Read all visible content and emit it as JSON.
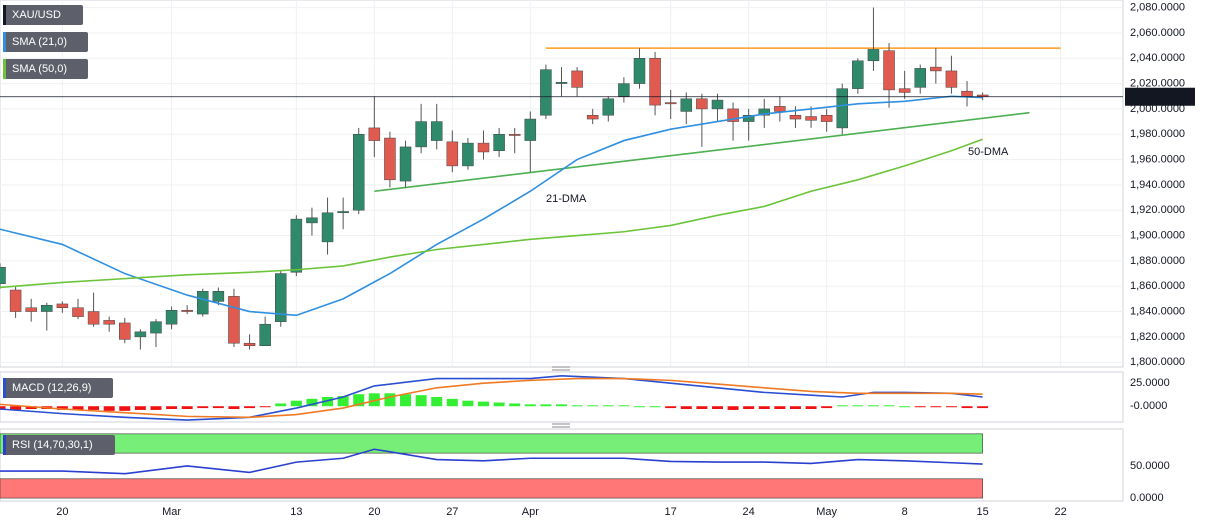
{
  "chart_data": [
    {
      "type": "candlestick",
      "title": "XAU/USD",
      "x": [
        0,
        1,
        2,
        3,
        4,
        5,
        6,
        7,
        8,
        9,
        10,
        11,
        12,
        13,
        14,
        15,
        16,
        17,
        18,
        19,
        20,
        21,
        22,
        23,
        24,
        25,
        26,
        27,
        28,
        29,
        30,
        31,
        32,
        33,
        34,
        35,
        36,
        37,
        38,
        39,
        40,
        41,
        42,
        43,
        44,
        45,
        46,
        47,
        48,
        49,
        50,
        51,
        52,
        53,
        54,
        55,
        56,
        57,
        58,
        59,
        60,
        61,
        62,
        63
      ],
      "open": [
        1862,
        1857,
        1843,
        1840,
        1846,
        1843,
        1840,
        1833,
        1831,
        1820,
        1823,
        1830,
        1841,
        1838,
        1848,
        1852,
        1815,
        1813,
        1832,
        1871,
        1910,
        1895,
        1918,
        1920,
        1985,
        1977,
        1943,
        1970,
        1975,
        1974,
        1955,
        1973,
        1967,
        1980,
        1975,
        1995,
        2020,
        2030,
        1995,
        1995,
        2010,
        2020,
        2040,
        2005,
        1998,
        2008,
        2000,
        2000,
        1990,
        1995,
        2002,
        1995,
        1994,
        1995,
        1985,
        2016,
        2038,
        2046,
        2016,
        2017,
        2033,
        2030,
        2014,
        2011
      ],
      "high": [
        1878,
        1860,
        1850,
        1847,
        1848,
        1850,
        1855,
        1836,
        1835,
        1826,
        1834,
        1844,
        1845,
        1858,
        1859,
        1858,
        1822,
        1836,
        1872,
        1916,
        1922,
        1930,
        1930,
        1985,
        2010,
        1982,
        1975,
        2004,
        2004,
        1983,
        1977,
        1983,
        1985,
        1985,
        1998,
        2035,
        2033,
        2033,
        2000,
        2010,
        2025,
        2048,
        2045,
        2015,
        2013,
        2012,
        2012,
        2005,
        2000,
        2008,
        2010,
        2002,
        2002,
        2000,
        2020,
        2040,
        2080,
        2052,
        2030,
        2035,
        2048,
        2042,
        2022,
        2013
      ],
      "low": [
        1858,
        1835,
        1832,
        1825,
        1839,
        1834,
        1828,
        1824,
        1815,
        1810,
        1812,
        1826,
        1838,
        1836,
        1845,
        1812,
        1810,
        1813,
        1828,
        1868,
        1900,
        1885,
        1905,
        1917,
        1962,
        1938,
        1938,
        1965,
        1968,
        1950,
        1952,
        1960,
        1962,
        1965,
        1950,
        1992,
        2010,
        2010,
        1988,
        1990,
        2005,
        2016,
        1995,
        1992,
        1988,
        1970,
        1990,
        1975,
        1975,
        1985,
        1990,
        1985,
        1985,
        1982,
        1980,
        2012,
        2030,
        2001,
        2008,
        2012,
        2020,
        2012,
        2002,
        2007
      ],
      "close": [
        1875,
        1840,
        1840,
        1845,
        1843,
        1836,
        1830,
        1830,
        1818,
        1824,
        1832,
        1841,
        1840,
        1856,
        1856,
        1815,
        1813,
        1830,
        1870,
        1913,
        1914,
        1918,
        1919,
        1980,
        1975,
        1944,
        1970,
        1990,
        1990,
        1955,
        1973,
        1966,
        1980,
        1979,
        1992,
        2031,
        2021,
        2017,
        1992,
        2008,
        2020,
        2040,
        2003,
        2004,
        2008,
        2000,
        2007,
        1990,
        1995,
        2000,
        1998,
        1992,
        1991,
        1990,
        2016,
        2038,
        2047,
        2015,
        2013,
        2032,
        2030,
        2017,
        2010,
        2009.61
      ],
      "up_color": "#2f8a6c",
      "down_color": "#e15a50",
      "series": [
        {
          "name": "SMA (21,0)",
          "color": "#2f8fe0",
          "x": [
            0,
            4,
            8,
            12,
            16,
            19,
            22,
            25,
            28,
            31,
            34,
            37,
            40,
            43,
            46,
            49,
            52,
            55,
            58,
            61,
            63
          ],
          "values": [
            1905,
            1893,
            1870,
            1853,
            1840,
            1837,
            1850,
            1870,
            1893,
            1913,
            1935,
            1960,
            1975,
            1984,
            1990,
            1996,
            2000,
            2004,
            2006,
            2010,
            2009
          ]
        },
        {
          "name": "SMA (50,0)",
          "color": "#6cc43a",
          "x": [
            0,
            4,
            8,
            12,
            16,
            19,
            22,
            25,
            28,
            31,
            34,
            37,
            40,
            43,
            46,
            49,
            52,
            55,
            58,
            61,
            63
          ],
          "values": [
            1859,
            1863,
            1866,
            1869,
            1871,
            1873,
            1876,
            1883,
            1889,
            1893,
            1897,
            1900,
            1903,
            1908,
            1916,
            1923,
            1935,
            1944,
            1955,
            1967,
            1976
          ]
        }
      ],
      "trendlines": [
        {
          "color": "#ff9a1a",
          "x": [
            35,
            68
          ],
          "values": [
            2048,
            2048
          ]
        },
        {
          "color": "#4caf50",
          "x": [
            24,
            66
          ],
          "values": [
            1935,
            1997
          ]
        }
      ],
      "annotations": [
        {
          "text": "21-DMA",
          "color": "#2f8fe0"
        },
        {
          "text": "50-DMA",
          "color": "#6cc43a"
        }
      ],
      "last_price": {
        "value": 2009.61,
        "label": "2,009.6100"
      },
      "xlim": [
        0,
        72
      ],
      "ylim": [
        1797,
        2086
      ],
      "yticks": [
        {
          "value": 1800,
          "label": "1,800.0000"
        },
        {
          "value": 1820,
          "label": "1,820.0000"
        },
        {
          "value": 1840,
          "label": "1,840.0000"
        },
        {
          "value": 1860,
          "label": "1,860.0000"
        },
        {
          "value": 1880,
          "label": "1,880.0000"
        },
        {
          "value": 1900,
          "label": "1,900.0000"
        },
        {
          "value": 1920,
          "label": "1,920.0000"
        },
        {
          "value": 1940,
          "label": "1,940.0000"
        },
        {
          "value": 1960,
          "label": "1,960.0000"
        },
        {
          "value": 1980,
          "label": "1,980.0000"
        },
        {
          "value": 2000,
          "label": "2,000.0000"
        },
        {
          "value": 2020,
          "label": "2,020.0000"
        },
        {
          "value": 2040,
          "label": "2,040.0000"
        },
        {
          "value": 2060,
          "label": "2,060.0000"
        },
        {
          "value": 2080,
          "label": "2,080.0000"
        }
      ],
      "xticks": [
        {
          "value": 4,
          "label": "20"
        },
        {
          "value": 11,
          "label": "Mar"
        },
        {
          "value": 19,
          "label": "13"
        },
        {
          "value": 24,
          "label": "20"
        },
        {
          "value": 29,
          "label": "27"
        },
        {
          "value": 34,
          "label": "Apr"
        },
        {
          "value": 43,
          "label": "17"
        },
        {
          "value": 48,
          "label": "24"
        },
        {
          "value": 53,
          "label": "May"
        },
        {
          "value": 58,
          "label": "8"
        },
        {
          "value": 63,
          "label": "15"
        },
        {
          "value": 68,
          "label": "22"
        }
      ],
      "grid": true
    },
    {
      "type": "macd",
      "title": "MACD (12,26,9)",
      "histogram": [
        -4,
        -4,
        -3,
        -3,
        -4,
        -4,
        -4,
        -5,
        -5,
        -4,
        -4,
        -3,
        -3,
        -2,
        -2,
        -3,
        -2,
        -1,
        3,
        6,
        8,
        10,
        11,
        13,
        14,
        14,
        13,
        12,
        10,
        8,
        6,
        5,
        4,
        3,
        2,
        2,
        2,
        1,
        1,
        1,
        1,
        0,
        0,
        -2,
        -3,
        -3,
        -3,
        -4,
        -3,
        -3,
        -3,
        -3,
        -3,
        -2,
        1,
        1,
        1,
        1,
        0,
        -1,
        -1,
        -1,
        -2,
        -2
      ],
      "up_color": "#33ee33",
      "down_color": "#ee1111",
      "series": [
        {
          "name": "MACD",
          "color": "#2a4fd0",
          "x": [
            0,
            4,
            8,
            12,
            16,
            19,
            22,
            24,
            28,
            34,
            36,
            40,
            43,
            46,
            49,
            52,
            54,
            56,
            58,
            61,
            63
          ],
          "values": [
            -3,
            -8,
            -12,
            -15,
            -12,
            -2,
            10,
            22,
            30,
            30,
            33,
            30,
            25,
            20,
            15,
            12,
            10,
            15,
            15,
            14,
            10
          ]
        },
        {
          "name": "Signal",
          "color": "#f07a22",
          "x": [
            0,
            4,
            8,
            12,
            16,
            19,
            22,
            25,
            28,
            31,
            34,
            37,
            40,
            43,
            46,
            49,
            52,
            55,
            58,
            61,
            63
          ],
          "values": [
            2,
            -3,
            -7,
            -11,
            -12,
            -9,
            -2,
            10,
            20,
            25,
            28,
            30,
            30,
            28,
            24,
            20,
            16,
            14,
            14,
            14,
            13
          ]
        }
      ],
      "xlim": [
        0,
        72
      ],
      "ylim": [
        -16,
        36
      ],
      "yticks": [
        {
          "value": 25,
          "label": "25.0000"
        },
        {
          "value": 0,
          "label": "-0.0000"
        }
      ]
    },
    {
      "type": "rsi",
      "title": "RSI (14,70,30,1)",
      "bands": [
        {
          "from": 70,
          "to": 100,
          "color": "#77ee77"
        },
        {
          "from": 0,
          "to": 30,
          "color": "#ff7777"
        }
      ],
      "series": [
        {
          "name": "RSI",
          "color": "#2a3fd0",
          "x": [
            0,
            4,
            8,
            12,
            16,
            19,
            22,
            24,
            28,
            31,
            34,
            37,
            40,
            43,
            46,
            49,
            52,
            55,
            58,
            61,
            63
          ],
          "values": [
            42,
            42,
            38,
            50,
            40,
            56,
            62,
            76,
            60,
            58,
            62,
            62,
            62,
            57,
            56,
            56,
            54,
            60,
            58,
            55,
            53
          ]
        }
      ],
      "xlim": [
        0,
        72
      ],
      "ylim": [
        -3,
        106
      ],
      "yticks": [
        {
          "value": 50,
          "label": "50.0000"
        },
        {
          "value": 0,
          "label": "0.0000"
        }
      ]
    }
  ]
}
